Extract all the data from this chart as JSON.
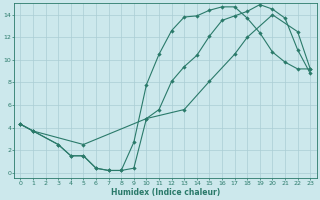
{
  "xlabel": "Humidex (Indice chaleur)",
  "xlim": [
    -0.5,
    23.5
  ],
  "ylim": [
    -0.5,
    15.0
  ],
  "xticks": [
    0,
    1,
    2,
    3,
    4,
    5,
    6,
    7,
    8,
    9,
    10,
    11,
    12,
    13,
    14,
    15,
    16,
    17,
    18,
    19,
    20,
    21,
    22,
    23
  ],
  "yticks": [
    0,
    2,
    4,
    6,
    8,
    10,
    12,
    14
  ],
  "bg_color": "#cce8ec",
  "line_color": "#2a7a6a",
  "grid_color": "#aacdd4",
  "curve1_x": [
    0,
    1,
    3,
    4,
    5,
    6,
    7,
    8,
    9,
    10,
    11,
    12,
    13,
    14,
    15,
    16,
    17,
    18,
    19,
    20,
    21,
    22,
    23
  ],
  "curve1_y": [
    4.3,
    3.7,
    2.5,
    1.5,
    1.5,
    0.4,
    0.2,
    0.2,
    2.7,
    7.8,
    10.5,
    12.6,
    13.8,
    13.9,
    14.4,
    14.7,
    14.7,
    13.7,
    12.4,
    10.7,
    9.8,
    9.2,
    9.2
  ],
  "curve2_x": [
    0,
    1,
    3,
    4,
    5,
    6,
    7,
    8,
    9,
    10,
    11,
    12,
    13,
    14,
    15,
    16,
    17,
    18,
    19,
    20,
    21,
    22,
    23
  ],
  "curve2_y": [
    4.3,
    3.7,
    2.5,
    1.5,
    1.5,
    0.4,
    0.2,
    0.2,
    0.4,
    4.8,
    5.6,
    8.1,
    9.4,
    10.4,
    12.1,
    13.5,
    13.9,
    14.3,
    14.9,
    14.5,
    13.7,
    10.9,
    8.8
  ],
  "curve3_x": [
    0,
    1,
    5,
    10,
    13,
    15,
    17,
    18,
    20,
    22,
    23
  ],
  "curve3_y": [
    4.3,
    3.7,
    2.5,
    4.8,
    5.6,
    8.1,
    10.5,
    12.0,
    14.0,
    12.5,
    9.2
  ]
}
